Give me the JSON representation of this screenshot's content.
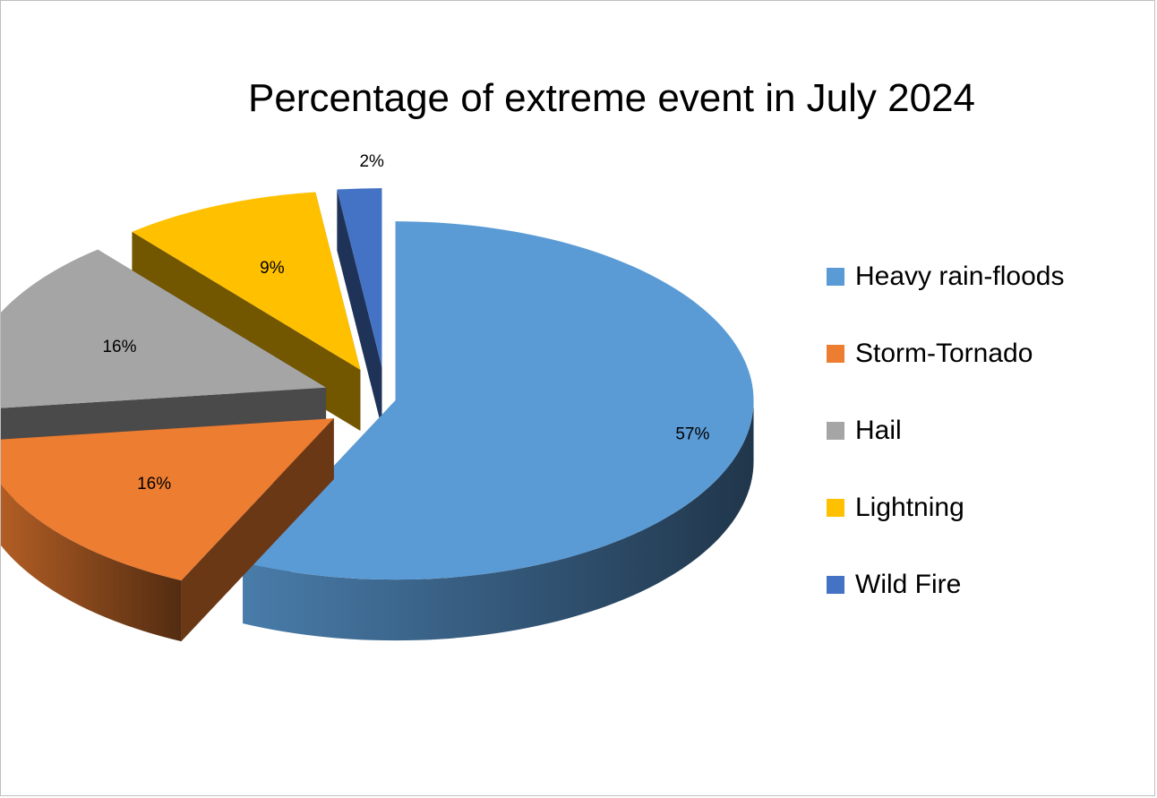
{
  "chart_data": {
    "type": "pie",
    "title": "Percentage of extreme event in July 2024",
    "categories": [
      "Heavy rain-floods",
      "Storm-Tornado",
      "Hail",
      "Lightning",
      "Wild Fire"
    ],
    "values": [
      57,
      16,
      16,
      9,
      2
    ],
    "data_labels": [
      "57%",
      "16%",
      "16%",
      "9%",
      "2%"
    ],
    "colors": [
      "#5b9bd5",
      "#ed7d31",
      "#a5a5a5",
      "#ffc000",
      "#4472c4"
    ],
    "style": "3d-exploded",
    "legend_position": "right"
  }
}
